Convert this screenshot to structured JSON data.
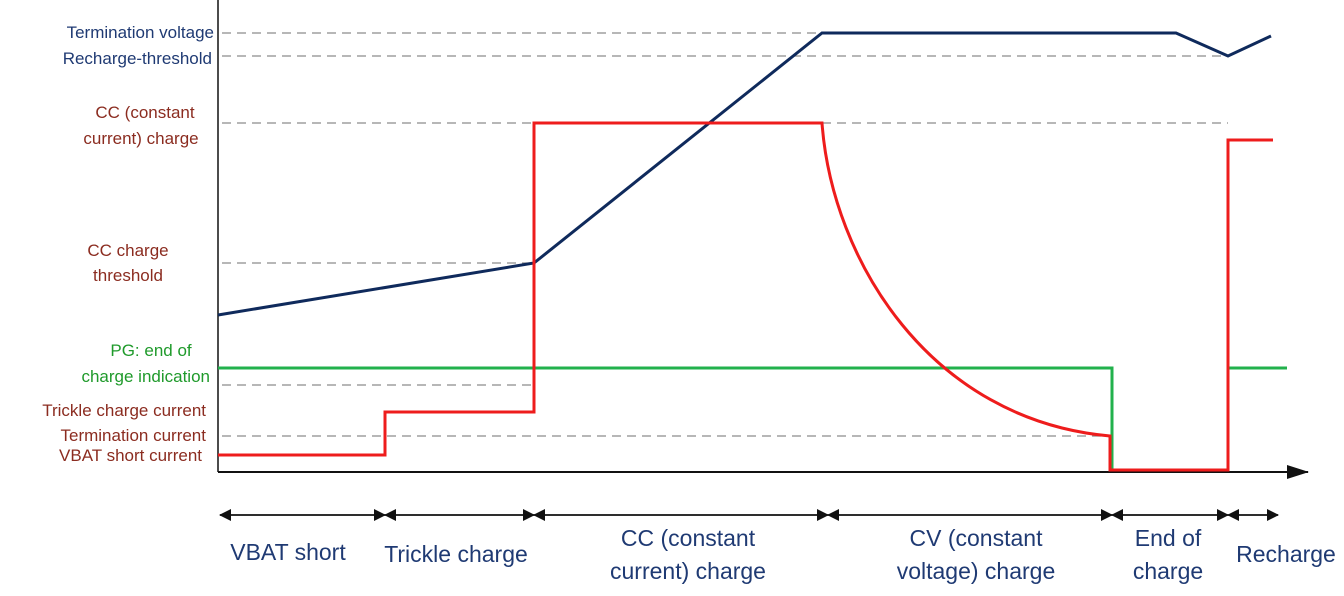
{
  "labels": {
    "termination_voltage": "Termination voltage",
    "recharge_threshold": "Recharge-threshold",
    "cc_charge_line1": "CC (constant",
    "cc_charge_line2": "current) charge",
    "cc_threshold_line1": "CC charge",
    "cc_threshold_line2": "threshold",
    "pg_line1": "PG: end of",
    "pg_line2": "charge indication",
    "trickle_current": "Trickle charge current",
    "termination_current": "Termination current",
    "vbat_short_current": "VBAT short current"
  },
  "phases": [
    {
      "lines": [
        "VBAT short"
      ]
    },
    {
      "lines": [
        "Trickle charge"
      ]
    },
    {
      "lines": [
        "CC (constant",
        "current) charge"
      ]
    },
    {
      "lines": [
        "CV (constant",
        "voltage) charge"
      ]
    },
    {
      "lines": [
        "End of",
        "charge"
      ]
    },
    {
      "lines": [
        "Recharge"
      ]
    }
  ],
  "colors": {
    "voltage": "#0f2a5c",
    "current": "#ee1c1c",
    "pg": "#22b14c",
    "axis": "#111111",
    "guide": "#8c8c8c"
  }
}
